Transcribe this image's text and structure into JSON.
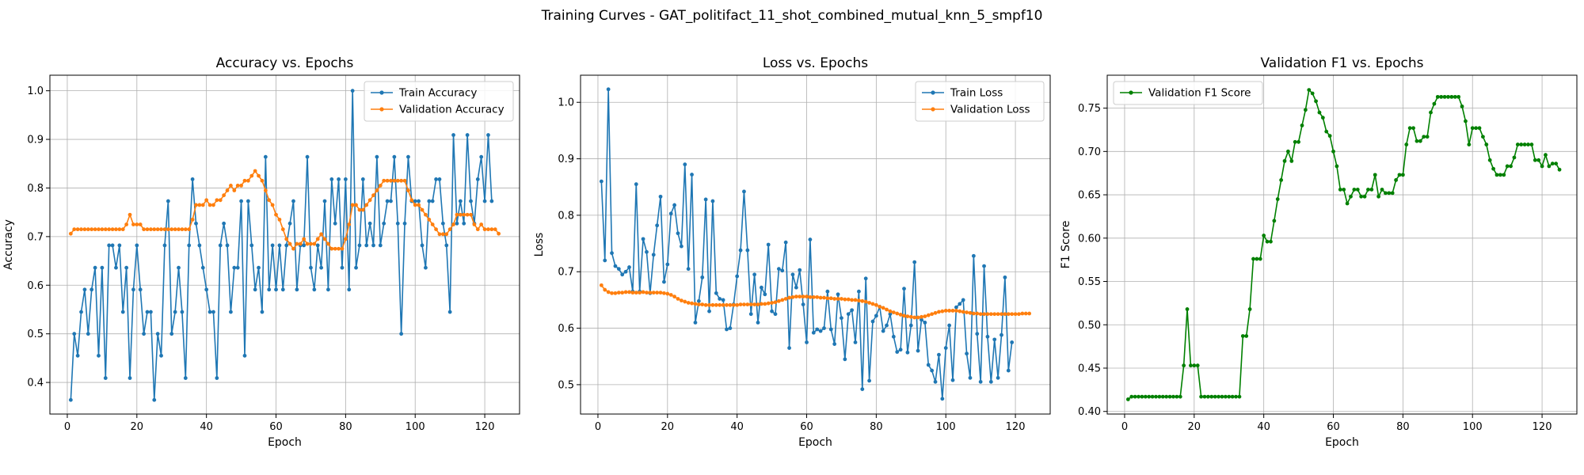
{
  "figure_title": "Training Curves - GAT_politifact_11_shot_combined_mutual_knn_5_smpf10",
  "chart_data": [
    {
      "type": "line",
      "title": "Accuracy vs. Epochs",
      "xlabel": "Epoch",
      "ylabel": "Accuracy",
      "xlim": [
        -5,
        130
      ],
      "ylim": [
        0.335,
        1.032
      ],
      "xticks": [
        0,
        20,
        40,
        60,
        80,
        100,
        120
      ],
      "yticks": [
        0.4,
        0.5,
        0.6,
        0.7,
        0.8,
        0.9,
        1.0
      ],
      "ytick_labels": [
        "0.4",
        "0.5",
        "0.6",
        "0.7",
        "0.8",
        "0.9",
        "1.0"
      ],
      "grid": true,
      "legend_loc": "upper right",
      "series": [
        {
          "name": "Train Accuracy",
          "color": "#1f77b4",
          "values": [
            0.364,
            0.5,
            0.455,
            0.545,
            0.591,
            0.5,
            0.591,
            0.636,
            0.455,
            0.636,
            0.409,
            0.682,
            0.682,
            0.636,
            0.682,
            0.545,
            0.636,
            0.409,
            0.591,
            0.682,
            0.591,
            0.5,
            0.545,
            0.545,
            0.364,
            0.5,
            0.455,
            0.682,
            0.773,
            0.5,
            0.545,
            0.636,
            0.545,
            0.409,
            0.682,
            0.818,
            0.727,
            0.682,
            0.636,
            0.591,
            0.545,
            0.545,
            0.409,
            0.682,
            0.727,
            0.682,
            0.545,
            0.636,
            0.636,
            0.773,
            0.455,
            0.773,
            0.682,
            0.591,
            0.636,
            0.545,
            0.864,
            0.591,
            0.682,
            0.591,
            0.682,
            0.591,
            0.682,
            0.727,
            0.773,
            0.591,
            0.682,
            0.682,
            0.864,
            0.636,
            0.591,
            0.682,
            0.636,
            0.773,
            0.591,
            0.818,
            0.727,
            0.818,
            0.636,
            0.818,
            0.591,
            1.0,
            0.636,
            0.682,
            0.818,
            0.682,
            0.727,
            0.682,
            0.864,
            0.682,
            0.727,
            0.773,
            0.773,
            0.864,
            0.727,
            0.5,
            0.727,
            0.864,
            0.773,
            0.773,
            0.773,
            0.682,
            0.636,
            0.773,
            0.773,
            0.818,
            0.818,
            0.727,
            0.682,
            0.545,
            0.909,
            0.727,
            0.773,
            0.727,
            0.909,
            0.773,
            0.727,
            0.818,
            0.864,
            0.773,
            0.909,
            0.773
          ]
        },
        {
          "name": "Validation Accuracy",
          "color": "#ff7f0e",
          "values": [
            0.706,
            0.715,
            0.715,
            0.715,
            0.715,
            0.715,
            0.715,
            0.715,
            0.715,
            0.715,
            0.715,
            0.715,
            0.715,
            0.715,
            0.715,
            0.715,
            0.725,
            0.745,
            0.725,
            0.725,
            0.725,
            0.715,
            0.715,
            0.715,
            0.715,
            0.715,
            0.715,
            0.715,
            0.715,
            0.715,
            0.715,
            0.715,
            0.715,
            0.715,
            0.715,
            0.735,
            0.765,
            0.765,
            0.765,
            0.775,
            0.765,
            0.765,
            0.775,
            0.775,
            0.785,
            0.795,
            0.805,
            0.795,
            0.805,
            0.805,
            0.815,
            0.815,
            0.825,
            0.835,
            0.825,
            0.815,
            0.795,
            0.775,
            0.765,
            0.745,
            0.735,
            0.715,
            0.695,
            0.685,
            0.675,
            0.685,
            0.685,
            0.695,
            0.685,
            0.685,
            0.685,
            0.695,
            0.705,
            0.695,
            0.685,
            0.675,
            0.675,
            0.675,
            0.675,
            0.695,
            0.725,
            0.765,
            0.765,
            0.755,
            0.755,
            0.765,
            0.775,
            0.785,
            0.795,
            0.805,
            0.815,
            0.815,
            0.815,
            0.815,
            0.815,
            0.815,
            0.815,
            0.795,
            0.775,
            0.765,
            0.765,
            0.755,
            0.745,
            0.735,
            0.725,
            0.715,
            0.705,
            0.705,
            0.705,
            0.715,
            0.725,
            0.745,
            0.745,
            0.745,
            0.745,
            0.745,
            0.725,
            0.715,
            0.725,
            0.715,
            0.715,
            0.715,
            0.715,
            0.706
          ]
        }
      ]
    },
    {
      "type": "line",
      "title": "Loss vs. Epochs",
      "xlabel": "Epoch",
      "ylabel": "Loss",
      "xlim": [
        -5,
        130
      ],
      "ylim": [
        0.448,
        1.048
      ],
      "xticks": [
        0,
        20,
        40,
        60,
        80,
        100,
        120
      ],
      "yticks": [
        0.5,
        0.6,
        0.7,
        0.8,
        0.9,
        1.0
      ],
      "ytick_labels": [
        "0.5",
        "0.6",
        "0.7",
        "0.8",
        "0.9",
        "1.0"
      ],
      "grid": true,
      "legend_loc": "upper right",
      "series": [
        {
          "name": "Train Loss",
          "color": "#1f77b4",
          "values": [
            0.86,
            0.72,
            1.023,
            0.733,
            0.71,
            0.705,
            0.695,
            0.7,
            0.708,
            0.665,
            0.855,
            0.665,
            0.758,
            0.735,
            0.662,
            0.73,
            0.782,
            0.833,
            0.682,
            0.713,
            0.803,
            0.818,
            0.768,
            0.745,
            0.89,
            0.705,
            0.872,
            0.61,
            0.648,
            0.69,
            0.828,
            0.63,
            0.825,
            0.662,
            0.652,
            0.65,
            0.598,
            0.6,
            0.642,
            0.692,
            0.738,
            0.842,
            0.738,
            0.625,
            0.695,
            0.61,
            0.672,
            0.66,
            0.748,
            0.63,
            0.625,
            0.705,
            0.702,
            0.752,
            0.565,
            0.695,
            0.672,
            0.703,
            0.642,
            0.575,
            0.757,
            0.592,
            0.598,
            0.595,
            0.6,
            0.665,
            0.598,
            0.572,
            0.66,
            0.618,
            0.545,
            0.625,
            0.632,
            0.575,
            0.665,
            0.492,
            0.688,
            0.507,
            0.612,
            0.622,
            0.638,
            0.595,
            0.605,
            0.625,
            0.585,
            0.558,
            0.562,
            0.67,
            0.557,
            0.605,
            0.717,
            0.56,
            0.615,
            0.61,
            0.535,
            0.525,
            0.505,
            0.553,
            0.475,
            0.565,
            0.605,
            0.508,
            0.637,
            0.643,
            0.65,
            0.555,
            0.512,
            0.728,
            0.59,
            0.505,
            0.71,
            0.585,
            0.505,
            0.58,
            0.512,
            0.588,
            0.69,
            0.525,
            0.575
          ]
        },
        {
          "name": "Validation Loss",
          "color": "#ff7f0e",
          "values": [
            0.676,
            0.668,
            0.664,
            0.662,
            0.662,
            0.663,
            0.663,
            0.664,
            0.664,
            0.663,
            0.663,
            0.663,
            0.664,
            0.663,
            0.663,
            0.663,
            0.663,
            0.663,
            0.662,
            0.661,
            0.659,
            0.656,
            0.652,
            0.649,
            0.647,
            0.645,
            0.644,
            0.643,
            0.642,
            0.642,
            0.641,
            0.641,
            0.641,
            0.641,
            0.641,
            0.641,
            0.641,
            0.641,
            0.641,
            0.641,
            0.642,
            0.642,
            0.642,
            0.642,
            0.642,
            0.642,
            0.643,
            0.643,
            0.644,
            0.645,
            0.646,
            0.648,
            0.65,
            0.652,
            0.654,
            0.655,
            0.656,
            0.656,
            0.656,
            0.656,
            0.655,
            0.655,
            0.655,
            0.654,
            0.654,
            0.653,
            0.653,
            0.652,
            0.652,
            0.652,
            0.651,
            0.651,
            0.65,
            0.65,
            0.649,
            0.648,
            0.647,
            0.645,
            0.643,
            0.641,
            0.638,
            0.636,
            0.633,
            0.63,
            0.628,
            0.626,
            0.624,
            0.622,
            0.621,
            0.62,
            0.619,
            0.619,
            0.62,
            0.621,
            0.623,
            0.625,
            0.627,
            0.629,
            0.63,
            0.631,
            0.631,
            0.631,
            0.631,
            0.63,
            0.629,
            0.628,
            0.627,
            0.626,
            0.626,
            0.625,
            0.625,
            0.625,
            0.625,
            0.625,
            0.625,
            0.625,
            0.625,
            0.625,
            0.625,
            0.625,
            0.625,
            0.626,
            0.626,
            0.626
          ]
        }
      ]
    },
    {
      "type": "line",
      "title": "Validation F1 vs. Epochs",
      "xlabel": "Epoch",
      "ylabel": "F1 Score",
      "xlim": [
        -5,
        130
      ],
      "ylim": [
        0.397,
        0.788
      ],
      "xticks": [
        0,
        20,
        40,
        60,
        80,
        100,
        120
      ],
      "yticks": [
        0.4,
        0.45,
        0.5,
        0.55,
        0.6,
        0.65,
        0.7,
        0.75
      ],
      "ytick_labels": [
        "0.40",
        "0.45",
        "0.50",
        "0.55",
        "0.60",
        "0.65",
        "0.70",
        "0.75"
      ],
      "grid": true,
      "legend_loc": "upper left",
      "series": [
        {
          "name": "Validation F1 Score",
          "color": "#008000",
          "values": [
            0.414,
            0.417,
            0.417,
            0.417,
            0.417,
            0.417,
            0.417,
            0.417,
            0.417,
            0.417,
            0.417,
            0.417,
            0.417,
            0.417,
            0.417,
            0.417,
            0.453,
            0.518,
            0.453,
            0.453,
            0.453,
            0.417,
            0.417,
            0.417,
            0.417,
            0.417,
            0.417,
            0.417,
            0.417,
            0.417,
            0.417,
            0.417,
            0.417,
            0.487,
            0.487,
            0.518,
            0.576,
            0.576,
            0.576,
            0.603,
            0.596,
            0.596,
            0.62,
            0.645,
            0.667,
            0.689,
            0.7,
            0.689,
            0.711,
            0.711,
            0.73,
            0.748,
            0.771,
            0.767,
            0.758,
            0.745,
            0.739,
            0.723,
            0.718,
            0.7,
            0.683,
            0.656,
            0.656,
            0.64,
            0.648,
            0.656,
            0.656,
            0.648,
            0.648,
            0.656,
            0.656,
            0.673,
            0.648,
            0.656,
            0.652,
            0.652,
            0.652,
            0.667,
            0.673,
            0.673,
            0.708,
            0.727,
            0.727,
            0.712,
            0.712,
            0.717,
            0.717,
            0.745,
            0.755,
            0.763,
            0.763,
            0.763,
            0.763,
            0.763,
            0.763,
            0.763,
            0.752,
            0.735,
            0.708,
            0.727,
            0.727,
            0.727,
            0.717,
            0.708,
            0.69,
            0.68,
            0.673,
            0.673,
            0.673,
            0.683,
            0.683,
            0.693,
            0.708,
            0.708,
            0.708,
            0.708,
            0.708,
            0.69,
            0.69,
            0.683,
            0.696,
            0.683,
            0.686,
            0.686,
            0.679
          ]
        }
      ]
    }
  ]
}
